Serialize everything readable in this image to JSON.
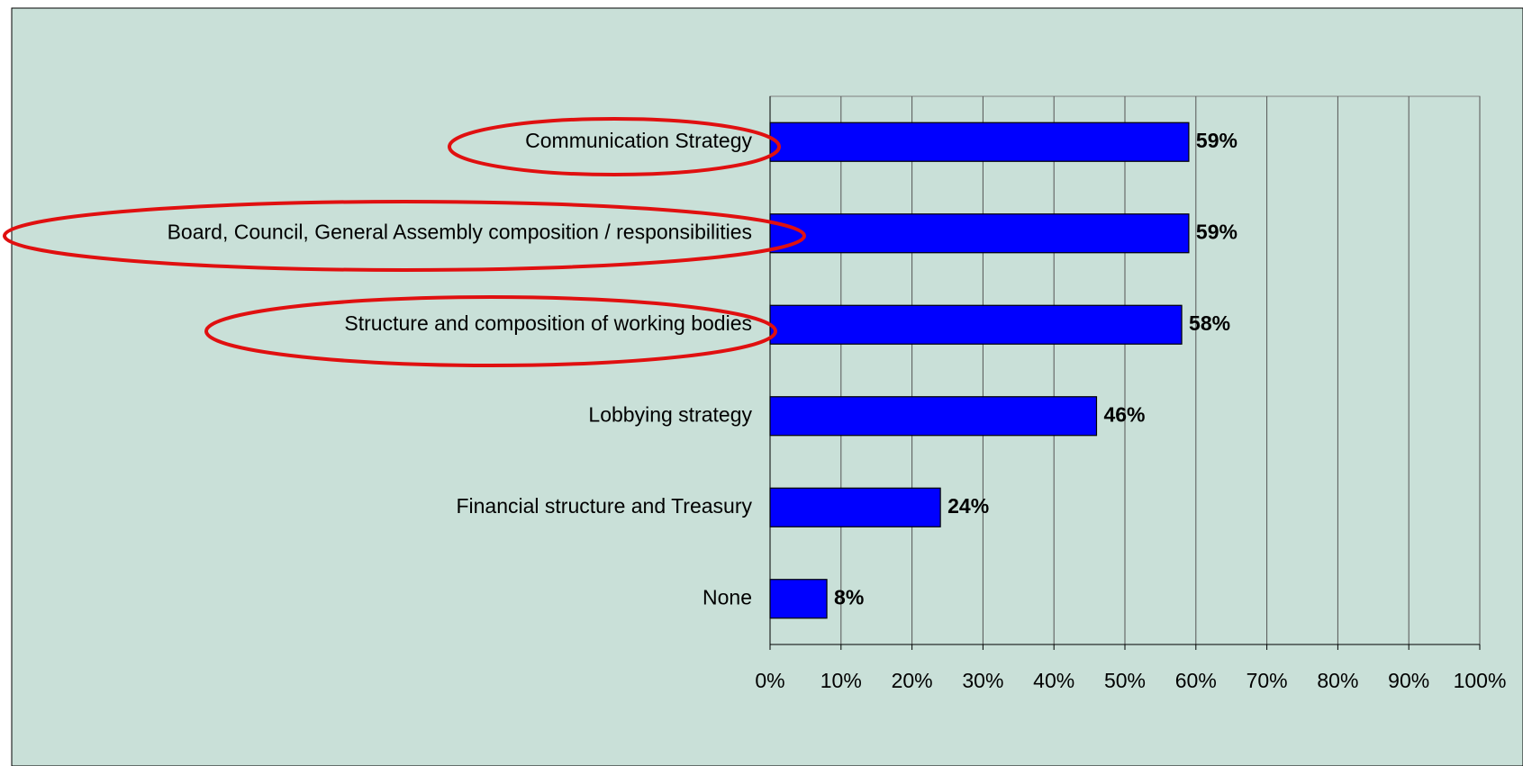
{
  "chart_data": {
    "type": "bar",
    "orientation": "horizontal",
    "categories": [
      "Communication Strategy",
      "Board, Council, General Assembly composition / responsibilities",
      "Structure and composition of working bodies",
      "Lobbying strategy",
      "Financial structure and Treasury",
      "None"
    ],
    "values": [
      59,
      59,
      58,
      46,
      24,
      8
    ],
    "value_labels": [
      "59%",
      "59%",
      "58%",
      "46%",
      "24%",
      "8%"
    ],
    "color": "#0000ff",
    "xlim": [
      0,
      100
    ],
    "xticks": [
      {
        "value": 0,
        "label": "0%"
      },
      {
        "value": 10,
        "label": "10%"
      },
      {
        "value": 20,
        "label": "20%"
      },
      {
        "value": 30,
        "label": "30%"
      },
      {
        "value": 40,
        "label": "40%"
      },
      {
        "value": 50,
        "label": "50%"
      },
      {
        "value": 60,
        "label": "60%"
      },
      {
        "value": 70,
        "label": "70%"
      },
      {
        "value": 80,
        "label": "80%"
      },
      {
        "value": 90,
        "label": "90%"
      },
      {
        "value": 100,
        "label": "100%"
      }
    ],
    "grid": true
  }
}
